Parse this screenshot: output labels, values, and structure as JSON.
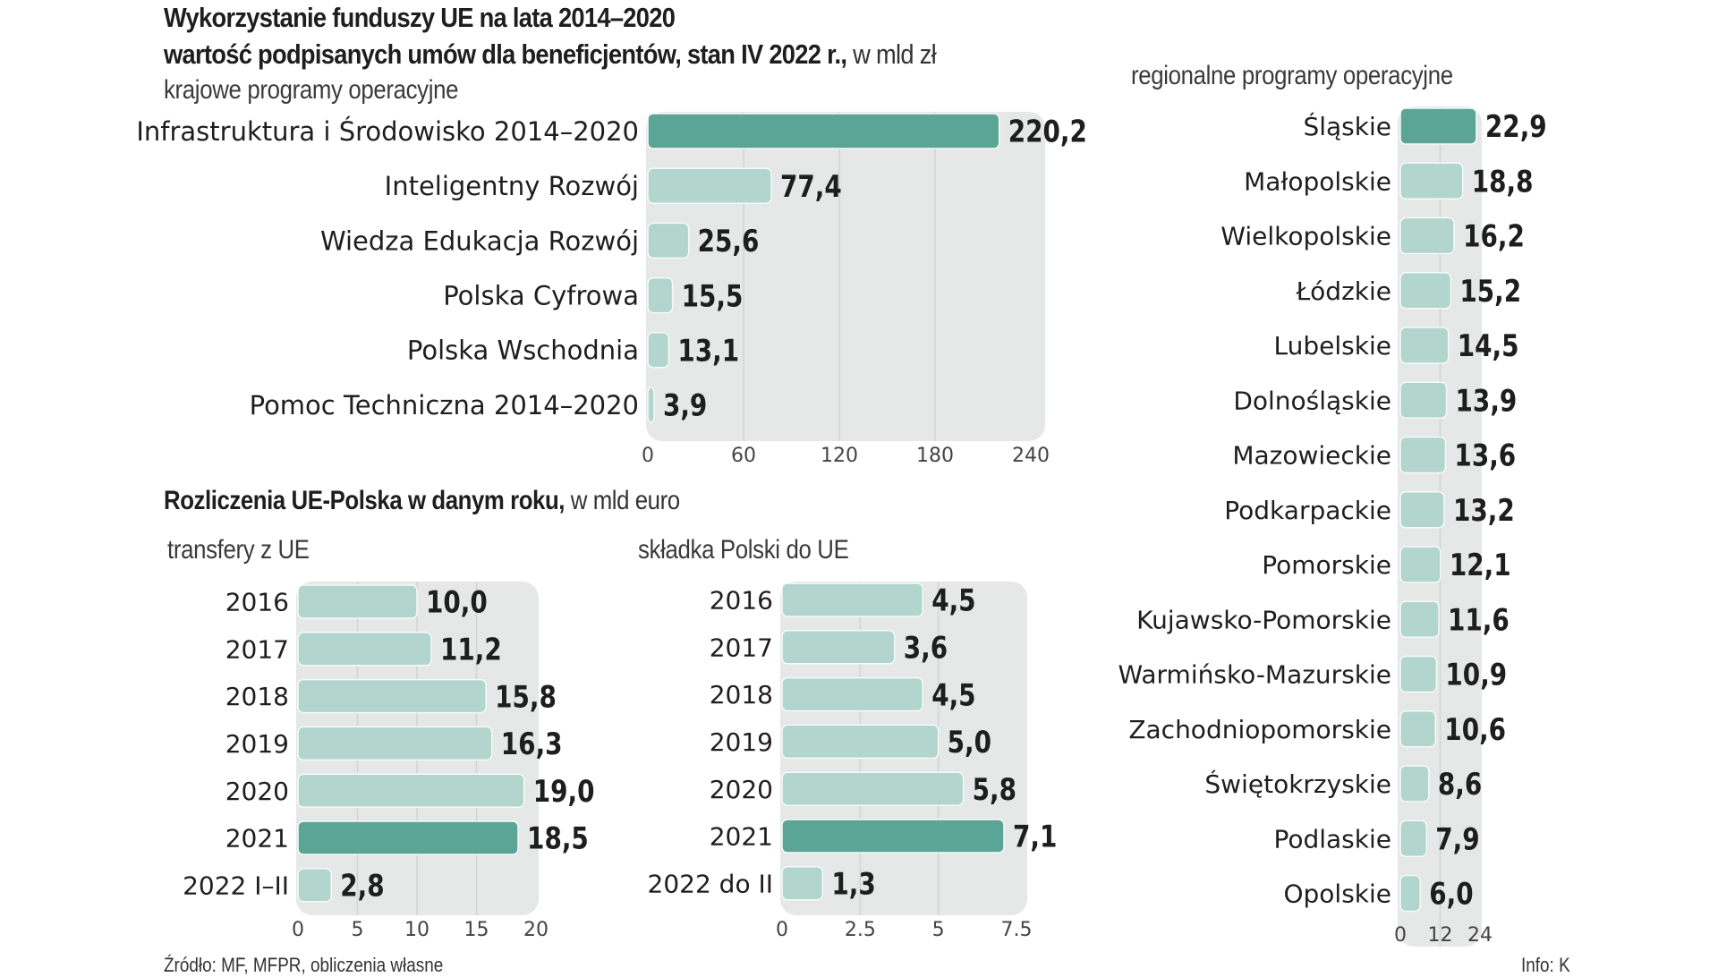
{
  "header": {
    "title": "Wykorzystanie funduszy UE na lata 2014–2020",
    "subtitle_bold": "wartość podpisanych umów dla beneficjentów, stan IV 2022 r.,",
    "subtitle_unit": " w mld zł"
  },
  "section2": {
    "title_bold": "Rozliczenia UE-Polska w danym roku,",
    "title_unit": " w mld euro"
  },
  "footer": {
    "source": "Źródło: MF, MFPR, obliczenia własne",
    "credit": "Info: K"
  },
  "colors": {
    "highlight": "#5ba596",
    "bar": "#b2d5ce",
    "panel": "#e6e7e7",
    "grid": "#d4d6d6",
    "text": "#1e1e1e",
    "tick": "#444444"
  },
  "chart_data": [
    {
      "id": "national",
      "type": "bar",
      "orientation": "horizontal",
      "title": "krajowe programy operacyjne",
      "unit": "mld zł",
      "categories": [
        "Infrastruktura i Środowisko 2014–2020",
        "Inteligentny Rozwój",
        "Wiedza Edukacja Rozwój",
        "Polska Cyfrowa",
        "Polska Wschodnia",
        "Pomoc Techniczna 2014–2020"
      ],
      "values": [
        220.2,
        77.4,
        25.6,
        15.5,
        13.1,
        3.9
      ],
      "value_labels": [
        "220,2",
        "77,4",
        "25,6",
        "15,5",
        "13,1",
        "3,9"
      ],
      "highlight": [
        true,
        false,
        false,
        false,
        false,
        false
      ],
      "xlim": [
        0,
        240
      ],
      "xticks": [
        0,
        60,
        120,
        180,
        240
      ],
      "xtick_labels": [
        "0",
        "60",
        "120",
        "180",
        "240"
      ],
      "grid": true
    },
    {
      "id": "regional",
      "type": "bar",
      "orientation": "horizontal",
      "title": "regionalne programy operacyjne",
      "unit": "mld zł",
      "categories": [
        "Śląskie",
        "Małopolskie",
        "Wielkopolskie",
        "Łódzkie",
        "Lubelskie",
        "Dolnośląskie",
        "Mazowieckie",
        "Podkarpackie",
        "Pomorskie",
        "Kujawsko-Pomorskie",
        "Warmińsko-Mazurskie",
        "Zachodniopomorskie",
        "Świętokrzyskie",
        "Podlaskie",
        "Opolskie"
      ],
      "values": [
        22.9,
        18.8,
        16.2,
        15.2,
        14.5,
        13.9,
        13.6,
        13.2,
        12.1,
        11.6,
        10.9,
        10.6,
        8.6,
        7.9,
        6.0
      ],
      "value_labels": [
        "22,9",
        "18,8",
        "16,2",
        "15,2",
        "14,5",
        "13,9",
        "13,6",
        "13,2",
        "12,1",
        "11,6",
        "10,9",
        "10,6",
        "8,6",
        "7,9",
        "6,0"
      ],
      "highlight": [
        true,
        false,
        false,
        false,
        false,
        false,
        false,
        false,
        false,
        false,
        false,
        false,
        false,
        false,
        false
      ],
      "xlim": [
        0,
        24
      ],
      "xticks": [
        0,
        12,
        24
      ],
      "xtick_labels": [
        "0",
        "12",
        "24"
      ],
      "grid": true
    },
    {
      "id": "transfers",
      "type": "bar",
      "orientation": "horizontal",
      "title": "transfery z UE",
      "unit": "mld euro",
      "categories": [
        "2016",
        "2017",
        "2018",
        "2019",
        "2020",
        "2021",
        "2022  I–II"
      ],
      "values": [
        10.0,
        11.2,
        15.8,
        16.3,
        19.0,
        18.5,
        2.8
      ],
      "value_labels": [
        "10,0",
        "11,2",
        "15,8",
        "16,3",
        "19,0",
        "18,5",
        "2,8"
      ],
      "highlight": [
        false,
        false,
        false,
        false,
        false,
        true,
        false
      ],
      "xlim": [
        0,
        20
      ],
      "xticks": [
        0,
        5,
        10,
        15,
        20
      ],
      "xtick_labels": [
        "0",
        "5",
        "10",
        "15",
        "20"
      ],
      "grid": true
    },
    {
      "id": "contribution",
      "type": "bar",
      "orientation": "horizontal",
      "title": "składka Polski do UE",
      "unit": "mld euro",
      "categories": [
        "2016",
        "2017",
        "2018",
        "2019",
        "2020",
        "2021",
        "2022 do II"
      ],
      "values": [
        4.5,
        3.6,
        4.5,
        5.0,
        5.8,
        7.1,
        1.3
      ],
      "value_labels": [
        "4,5",
        "3,6",
        "4,5",
        "5,0",
        "5,8",
        "7,1",
        "1,3"
      ],
      "highlight": [
        false,
        false,
        false,
        false,
        false,
        true,
        false
      ],
      "xlim": [
        0,
        7.5
      ],
      "xticks": [
        0,
        2.5,
        5,
        7.5
      ],
      "xtick_labels": [
        "0",
        "2.5",
        "5",
        "7.5"
      ],
      "grid": true
    }
  ]
}
